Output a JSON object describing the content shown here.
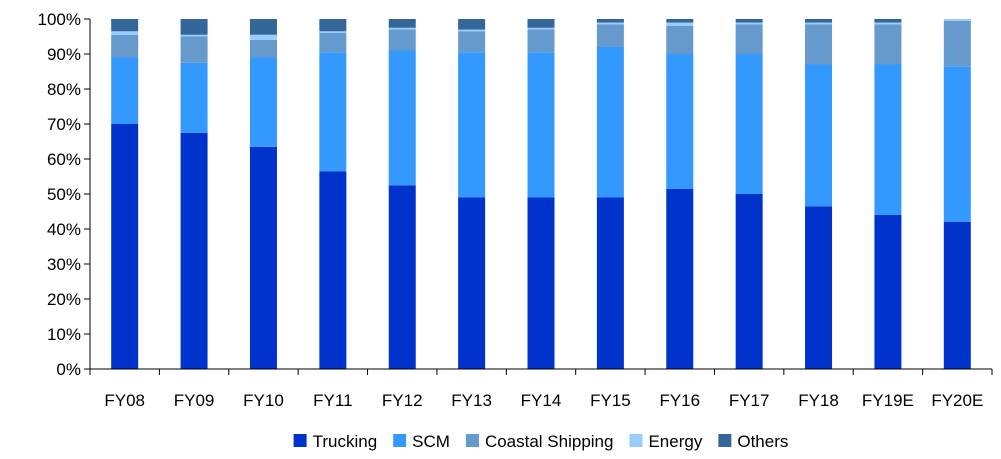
{
  "chart_data": {
    "type": "bar",
    "stacked": true,
    "title": "",
    "xlabel": "",
    "ylabel": "",
    "ylim": [
      0,
      100
    ],
    "y_ticks": [
      "0%",
      "10%",
      "20%",
      "30%",
      "40%",
      "50%",
      "60%",
      "70%",
      "80%",
      "90%",
      "100%"
    ],
    "categories": [
      "FY08",
      "FY09",
      "FY10",
      "FY11",
      "FY12",
      "FY13",
      "FY14",
      "FY15",
      "FY16",
      "FY17",
      "FY18",
      "FY19E",
      "FY20E"
    ],
    "legend_position": "bottom",
    "grid": false,
    "series": [
      {
        "name": "Trucking",
        "color": "#0033cc",
        "values": [
          70,
          67.5,
          63.5,
          56.5,
          52.5,
          49,
          49,
          49,
          51.5,
          50,
          46.5,
          44,
          42
        ]
      },
      {
        "name": "SCM",
        "color": "#3399ff",
        "values": [
          19,
          20,
          25.5,
          34,
          38.5,
          41.5,
          41.5,
          43,
          38.5,
          40,
          40.5,
          43,
          44.5
        ]
      },
      {
        "name": "Coastal Shipping",
        "color": "#6699cc",
        "values": [
          6.5,
          7.5,
          5,
          5.5,
          6,
          6,
          6.5,
          6.5,
          8,
          8.5,
          11.5,
          11.5,
          13
        ]
      },
      {
        "name": "Energy",
        "color": "#99ccff",
        "values": [
          1,
          0.5,
          1.5,
          0.5,
          0.5,
          0.5,
          0.5,
          0.5,
          1,
          0.5,
          0.5,
          0.5,
          0.5
        ]
      },
      {
        "name": "Others",
        "color": "#336699",
        "values": [
          3.5,
          4.5,
          4.5,
          3.5,
          2.5,
          3,
          2.5,
          1,
          1,
          1,
          1,
          1,
          0
        ]
      }
    ]
  }
}
